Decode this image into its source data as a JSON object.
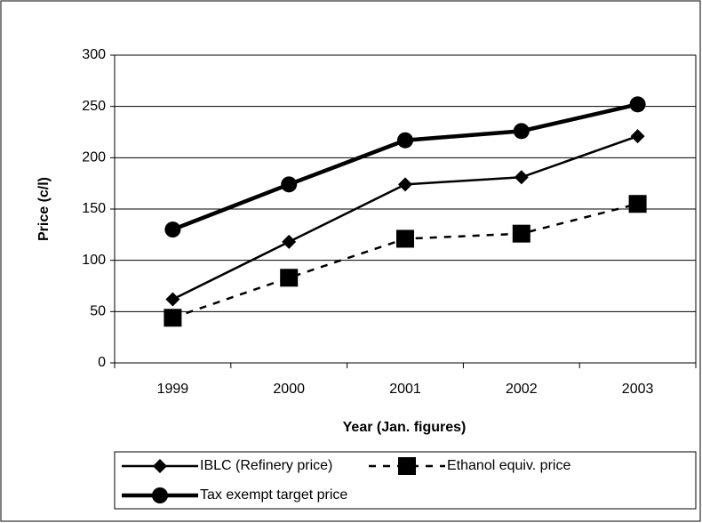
{
  "chart_data": {
    "type": "line",
    "x_label": "Year (Jan. figures)",
    "y_label": "Price (c/l)",
    "categories": [
      "1999",
      "2000",
      "2001",
      "2002",
      "2003"
    ],
    "series": [
      {
        "name": "IBLC (Refinery price)",
        "color": "#000000",
        "marker": "diamond",
        "dash": false,
        "width": 2.5,
        "values": [
          62,
          118,
          174,
          181,
          221
        ]
      },
      {
        "name": "Ethanol equiv. price",
        "color": "#000000",
        "marker": "square",
        "dash": true,
        "width": 2.5,
        "values": [
          44,
          83,
          121,
          126,
          155
        ]
      },
      {
        "name": "Tax exempt target price",
        "color": "#000000",
        "marker": "circle",
        "dash": false,
        "width": 4.5,
        "values": [
          130,
          174,
          217,
          226,
          252
        ]
      }
    ],
    "ylim": [
      0,
      300
    ],
    "yticks": [
      0,
      50,
      100,
      150,
      200,
      250,
      300
    ],
    "grid": true
  }
}
